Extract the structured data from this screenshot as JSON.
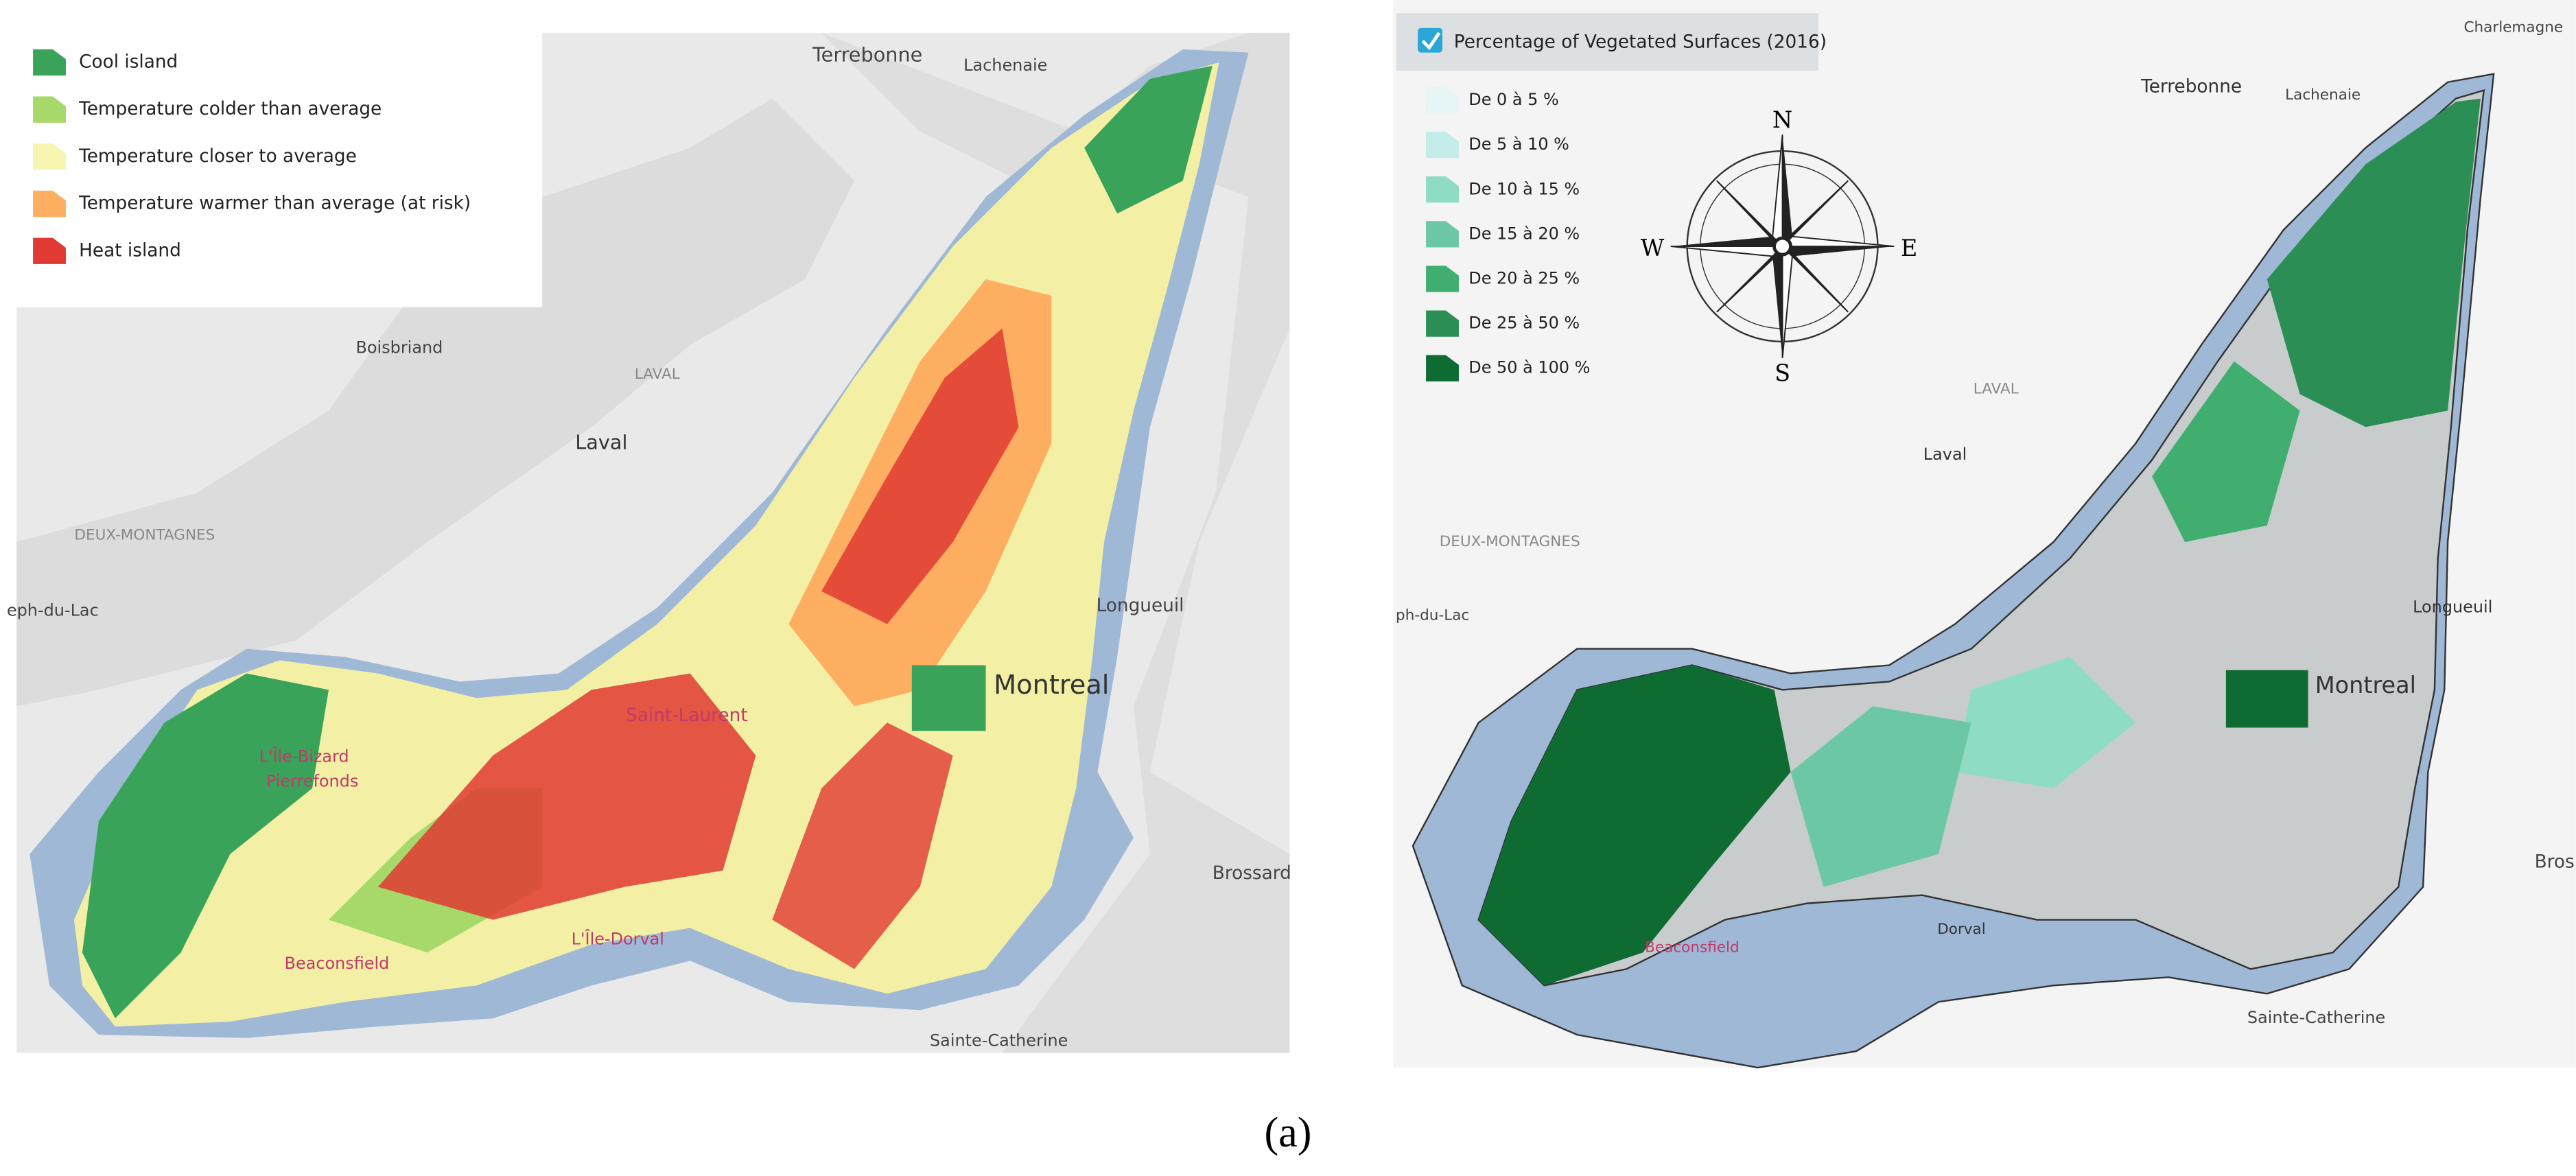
{
  "left_map": {
    "legend": [
      {
        "label": "Cool island",
        "color": "#3aa35a"
      },
      {
        "label": "Temperature colder than average",
        "color": "#a6d96a"
      },
      {
        "label": "Temperature closer to average",
        "color": "#f7f5b0"
      },
      {
        "label": "Temperature warmer than average (at risk)",
        "color": "#fdae61"
      },
      {
        "label": "Heat island",
        "color": "#e03a32"
      }
    ],
    "places": [
      "Terrebonne",
      "Lachenaie",
      "Boisbriand",
      "LAVAL",
      "Laval",
      "DEUX-MONTAGNES",
      "eph-du-Lac",
      "Longueuil",
      "Montreal",
      "Saint-Laurent",
      "L'Île-Bizard",
      "Pierrefonds",
      "Beaconsfield",
      "L'Île-Dorval",
      "Brossard",
      "Sainte-Catherine"
    ]
  },
  "right_map": {
    "layer_title": "Percentage of Vegetated Surfaces (2016)",
    "legend": [
      {
        "label": "De 0 à 5 %",
        "color": "#e6f5f5"
      },
      {
        "label": "De 5 à 10 %",
        "color": "#c4ece8"
      },
      {
        "label": "De 10 à 15 %",
        "color": "#8fdcc4"
      },
      {
        "label": "De 15 à 20 %",
        "color": "#6cc8a4"
      },
      {
        "label": "De 20 à 25 %",
        "color": "#3fae6e"
      },
      {
        "label": "De 25 à 50 %",
        "color": "#2b8f55"
      },
      {
        "label": "De 50 à 100 %",
        "color": "#0e6b32"
      }
    ],
    "compass": {
      "north": "N",
      "east": "E",
      "south": "S",
      "west": "W"
    },
    "places": [
      "Charlemagne",
      "Terrebonne",
      "Lachenaie",
      "LAVAL",
      "Laval",
      "DEUX-MONTAGNES",
      "ph-du-Lac",
      "Longueuil",
      "Montreal",
      "Bros",
      "Dorval",
      "Beaconsfield",
      "Sainte-Catherine"
    ]
  },
  "caption": "(a)"
}
